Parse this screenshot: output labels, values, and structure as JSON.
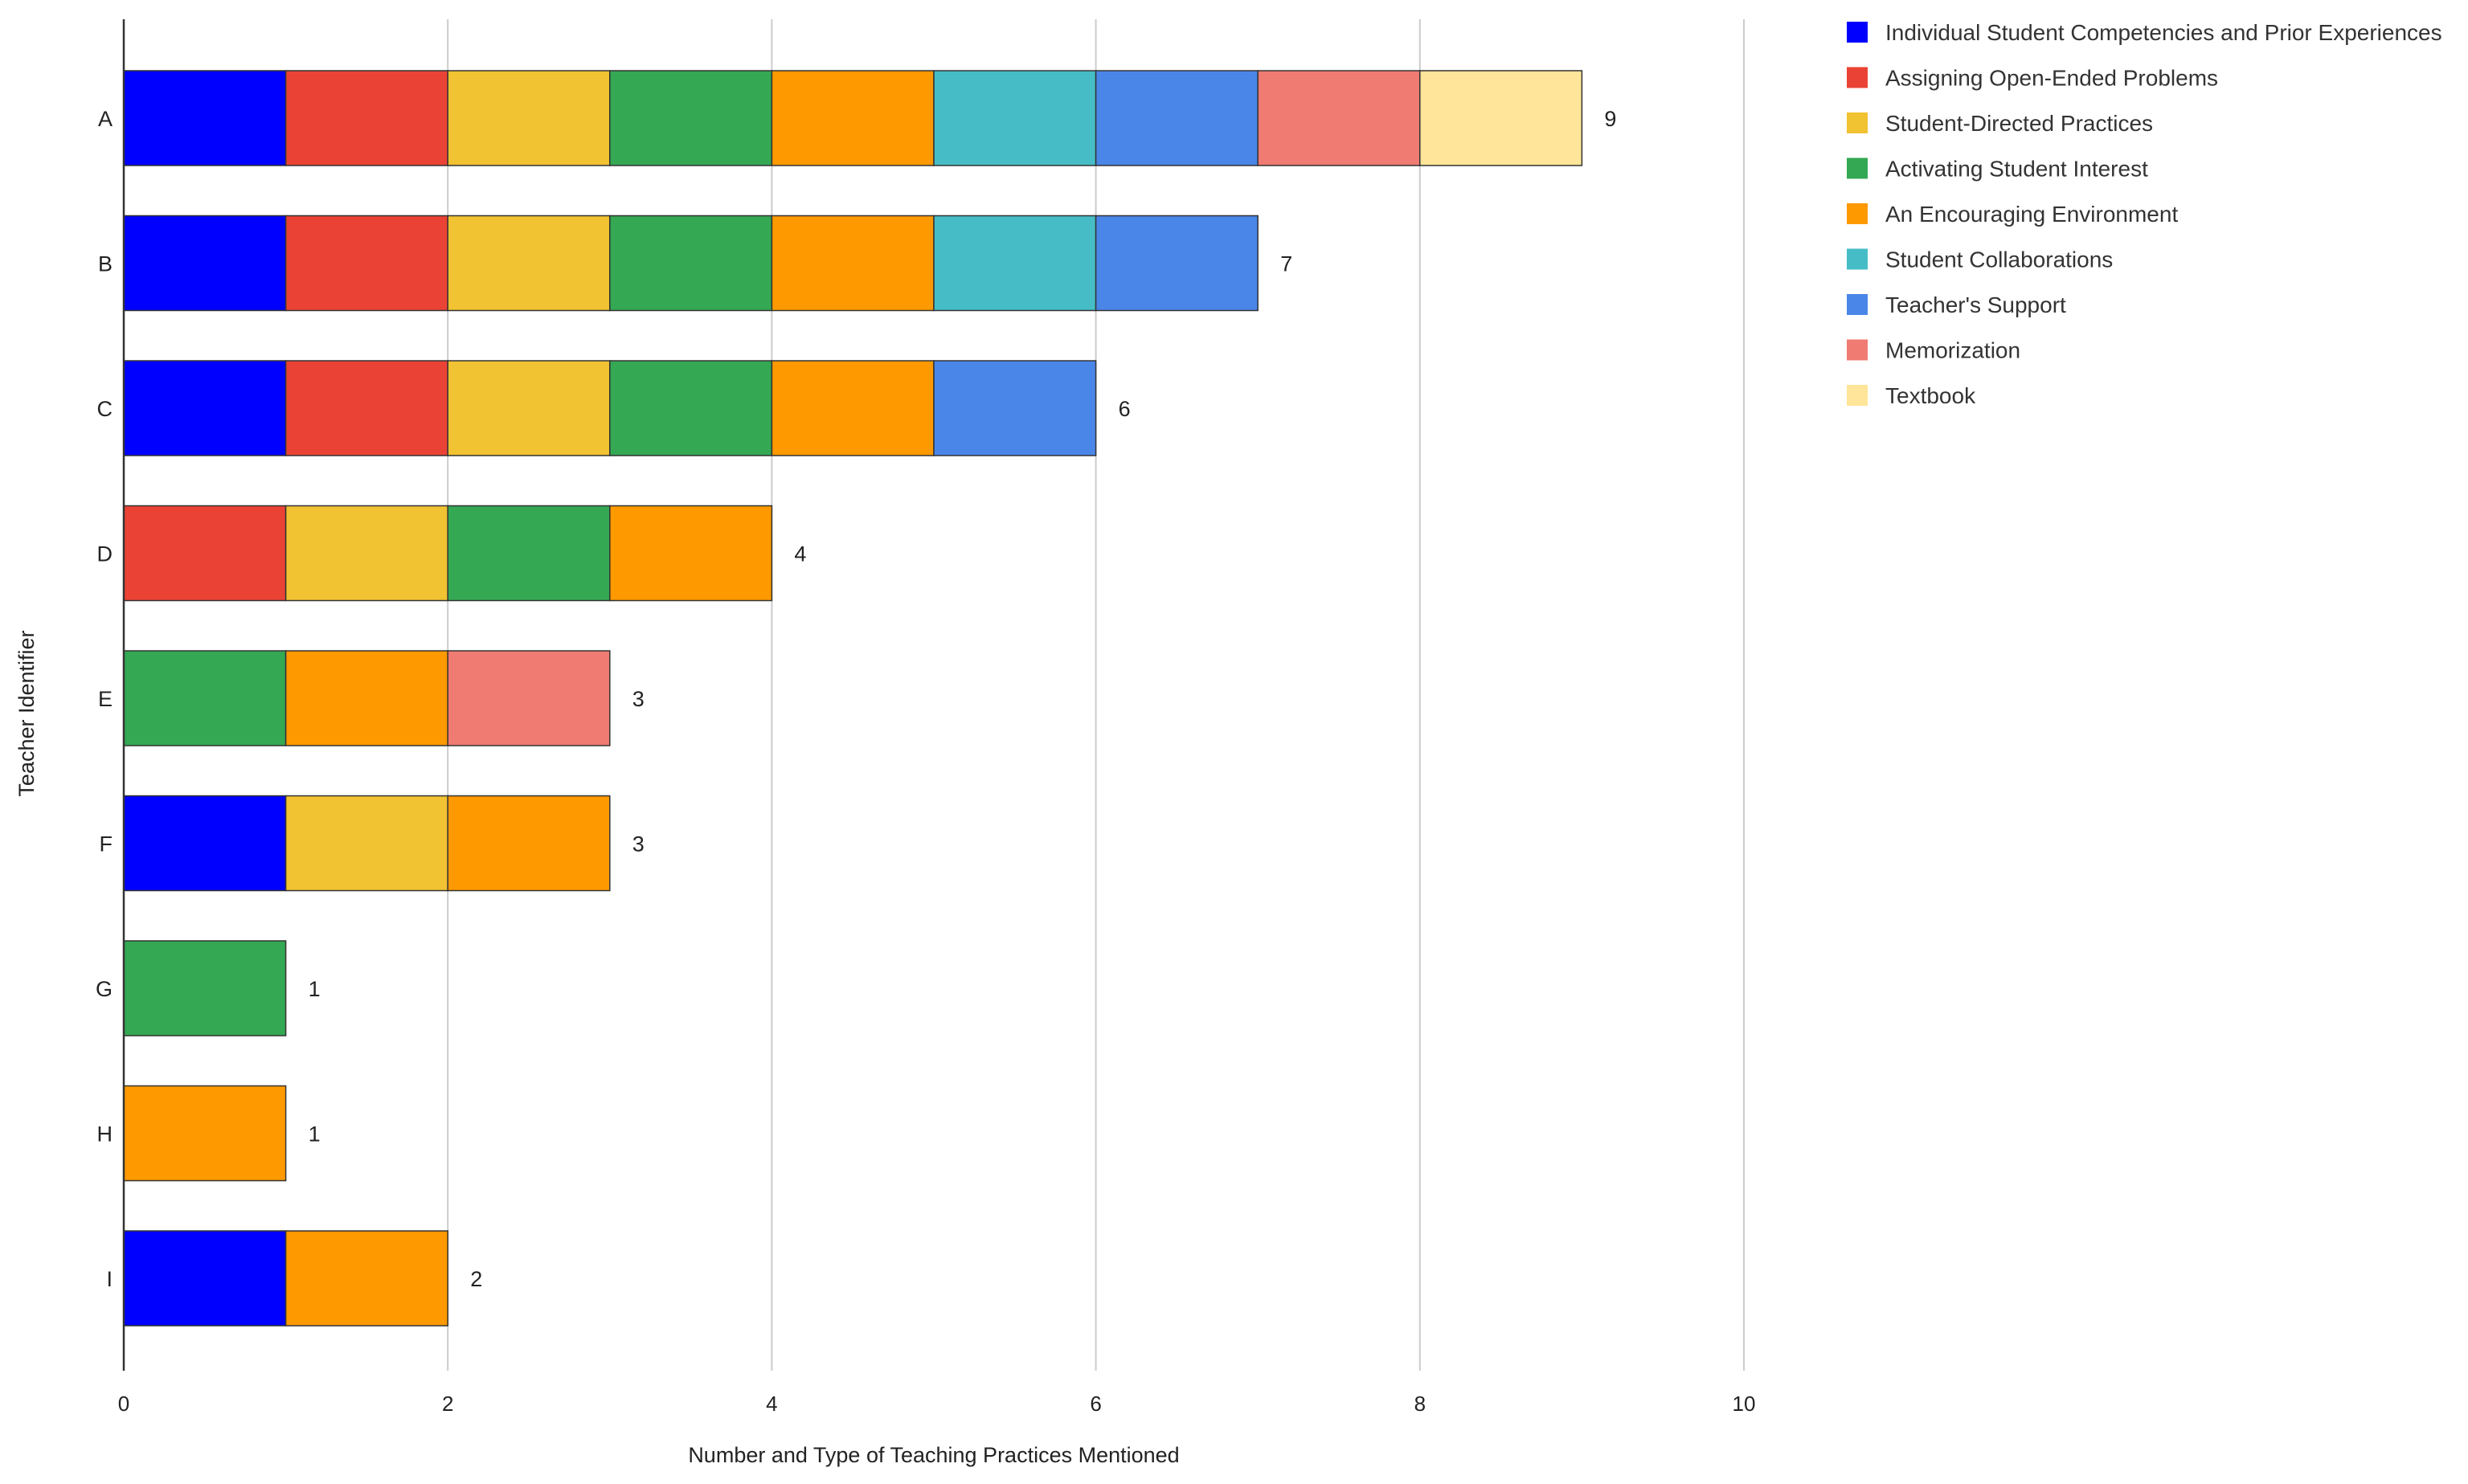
{
  "chart_data": {
    "type": "bar",
    "orientation": "horizontal",
    "stacked": true,
    "title": "",
    "xlabel": "Number and Type of Teaching Practices Mentioned",
    "ylabel": "Teacher Identifier",
    "xlim": [
      0,
      10
    ],
    "xticks": [
      0,
      2,
      4,
      6,
      8,
      10
    ],
    "grid": true,
    "legend_position": "top-right",
    "categories": [
      "A",
      "B",
      "C",
      "D",
      "E",
      "F",
      "G",
      "H",
      "I"
    ],
    "totals": [
      9,
      7,
      6,
      4,
      3,
      3,
      1,
      1,
      2
    ],
    "series": [
      {
        "name": "Individual Student Competencies and Prior Experiences",
        "color": "#0000ff",
        "values": [
          1,
          1,
          1,
          0,
          0,
          1,
          0,
          0,
          1
        ]
      },
      {
        "name": "Assigning Open-Ended Problems",
        "color": "#ea4335",
        "values": [
          1,
          1,
          1,
          1,
          0,
          0,
          0,
          0,
          0
        ]
      },
      {
        "name": "Student-Directed Practices",
        "color": "#f1c232",
        "values": [
          1,
          1,
          1,
          1,
          0,
          1,
          0,
          0,
          0
        ]
      },
      {
        "name": "Activating Student Interest",
        "color": "#34a853",
        "values": [
          1,
          1,
          1,
          1,
          1,
          0,
          1,
          0,
          0
        ]
      },
      {
        "name": "An Encouraging Environment",
        "color": "#ff9900",
        "values": [
          1,
          1,
          1,
          1,
          1,
          1,
          0,
          1,
          1
        ]
      },
      {
        "name": "Student Collaborations",
        "color": "#46bdc6",
        "values": [
          1,
          1,
          0,
          0,
          0,
          0,
          0,
          0,
          0
        ]
      },
      {
        "name": "Teacher's Support",
        "color": "#4a86e8",
        "values": [
          1,
          1,
          1,
          0,
          0,
          0,
          0,
          0,
          0
        ]
      },
      {
        "name": "Memorization",
        "color": "#f07b72",
        "values": [
          1,
          0,
          0,
          0,
          1,
          0,
          0,
          0,
          0
        ]
      },
      {
        "name": "Textbook",
        "color": "#ffe599",
        "values": [
          1,
          0,
          0,
          0,
          0,
          0,
          0,
          0,
          0
        ]
      }
    ],
    "colors": {
      "grid": "#cccccc",
      "axis": "#333333"
    }
  }
}
